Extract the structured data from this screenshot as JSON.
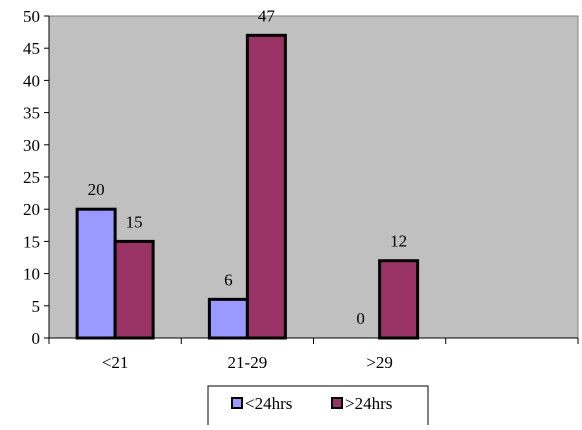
{
  "chart_data": {
    "type": "bar",
    "categories": [
      "<21",
      "21-29",
      ">29",
      ""
    ],
    "series": [
      {
        "name": "<24hrs",
        "values": [
          20,
          6,
          0,
          null
        ],
        "color": "#9999ff"
      },
      {
        "name": ">24hrs",
        "values": [
          15,
          47,
          12,
          null
        ],
        "color": "#993366"
      }
    ],
    "ylim": [
      0,
      50
    ],
    "yticks": [
      0,
      5,
      10,
      15,
      20,
      25,
      30,
      35,
      40,
      45,
      50
    ],
    "grid": false,
    "plot_background": "#c0c0c0",
    "legend_position": "bottom"
  }
}
